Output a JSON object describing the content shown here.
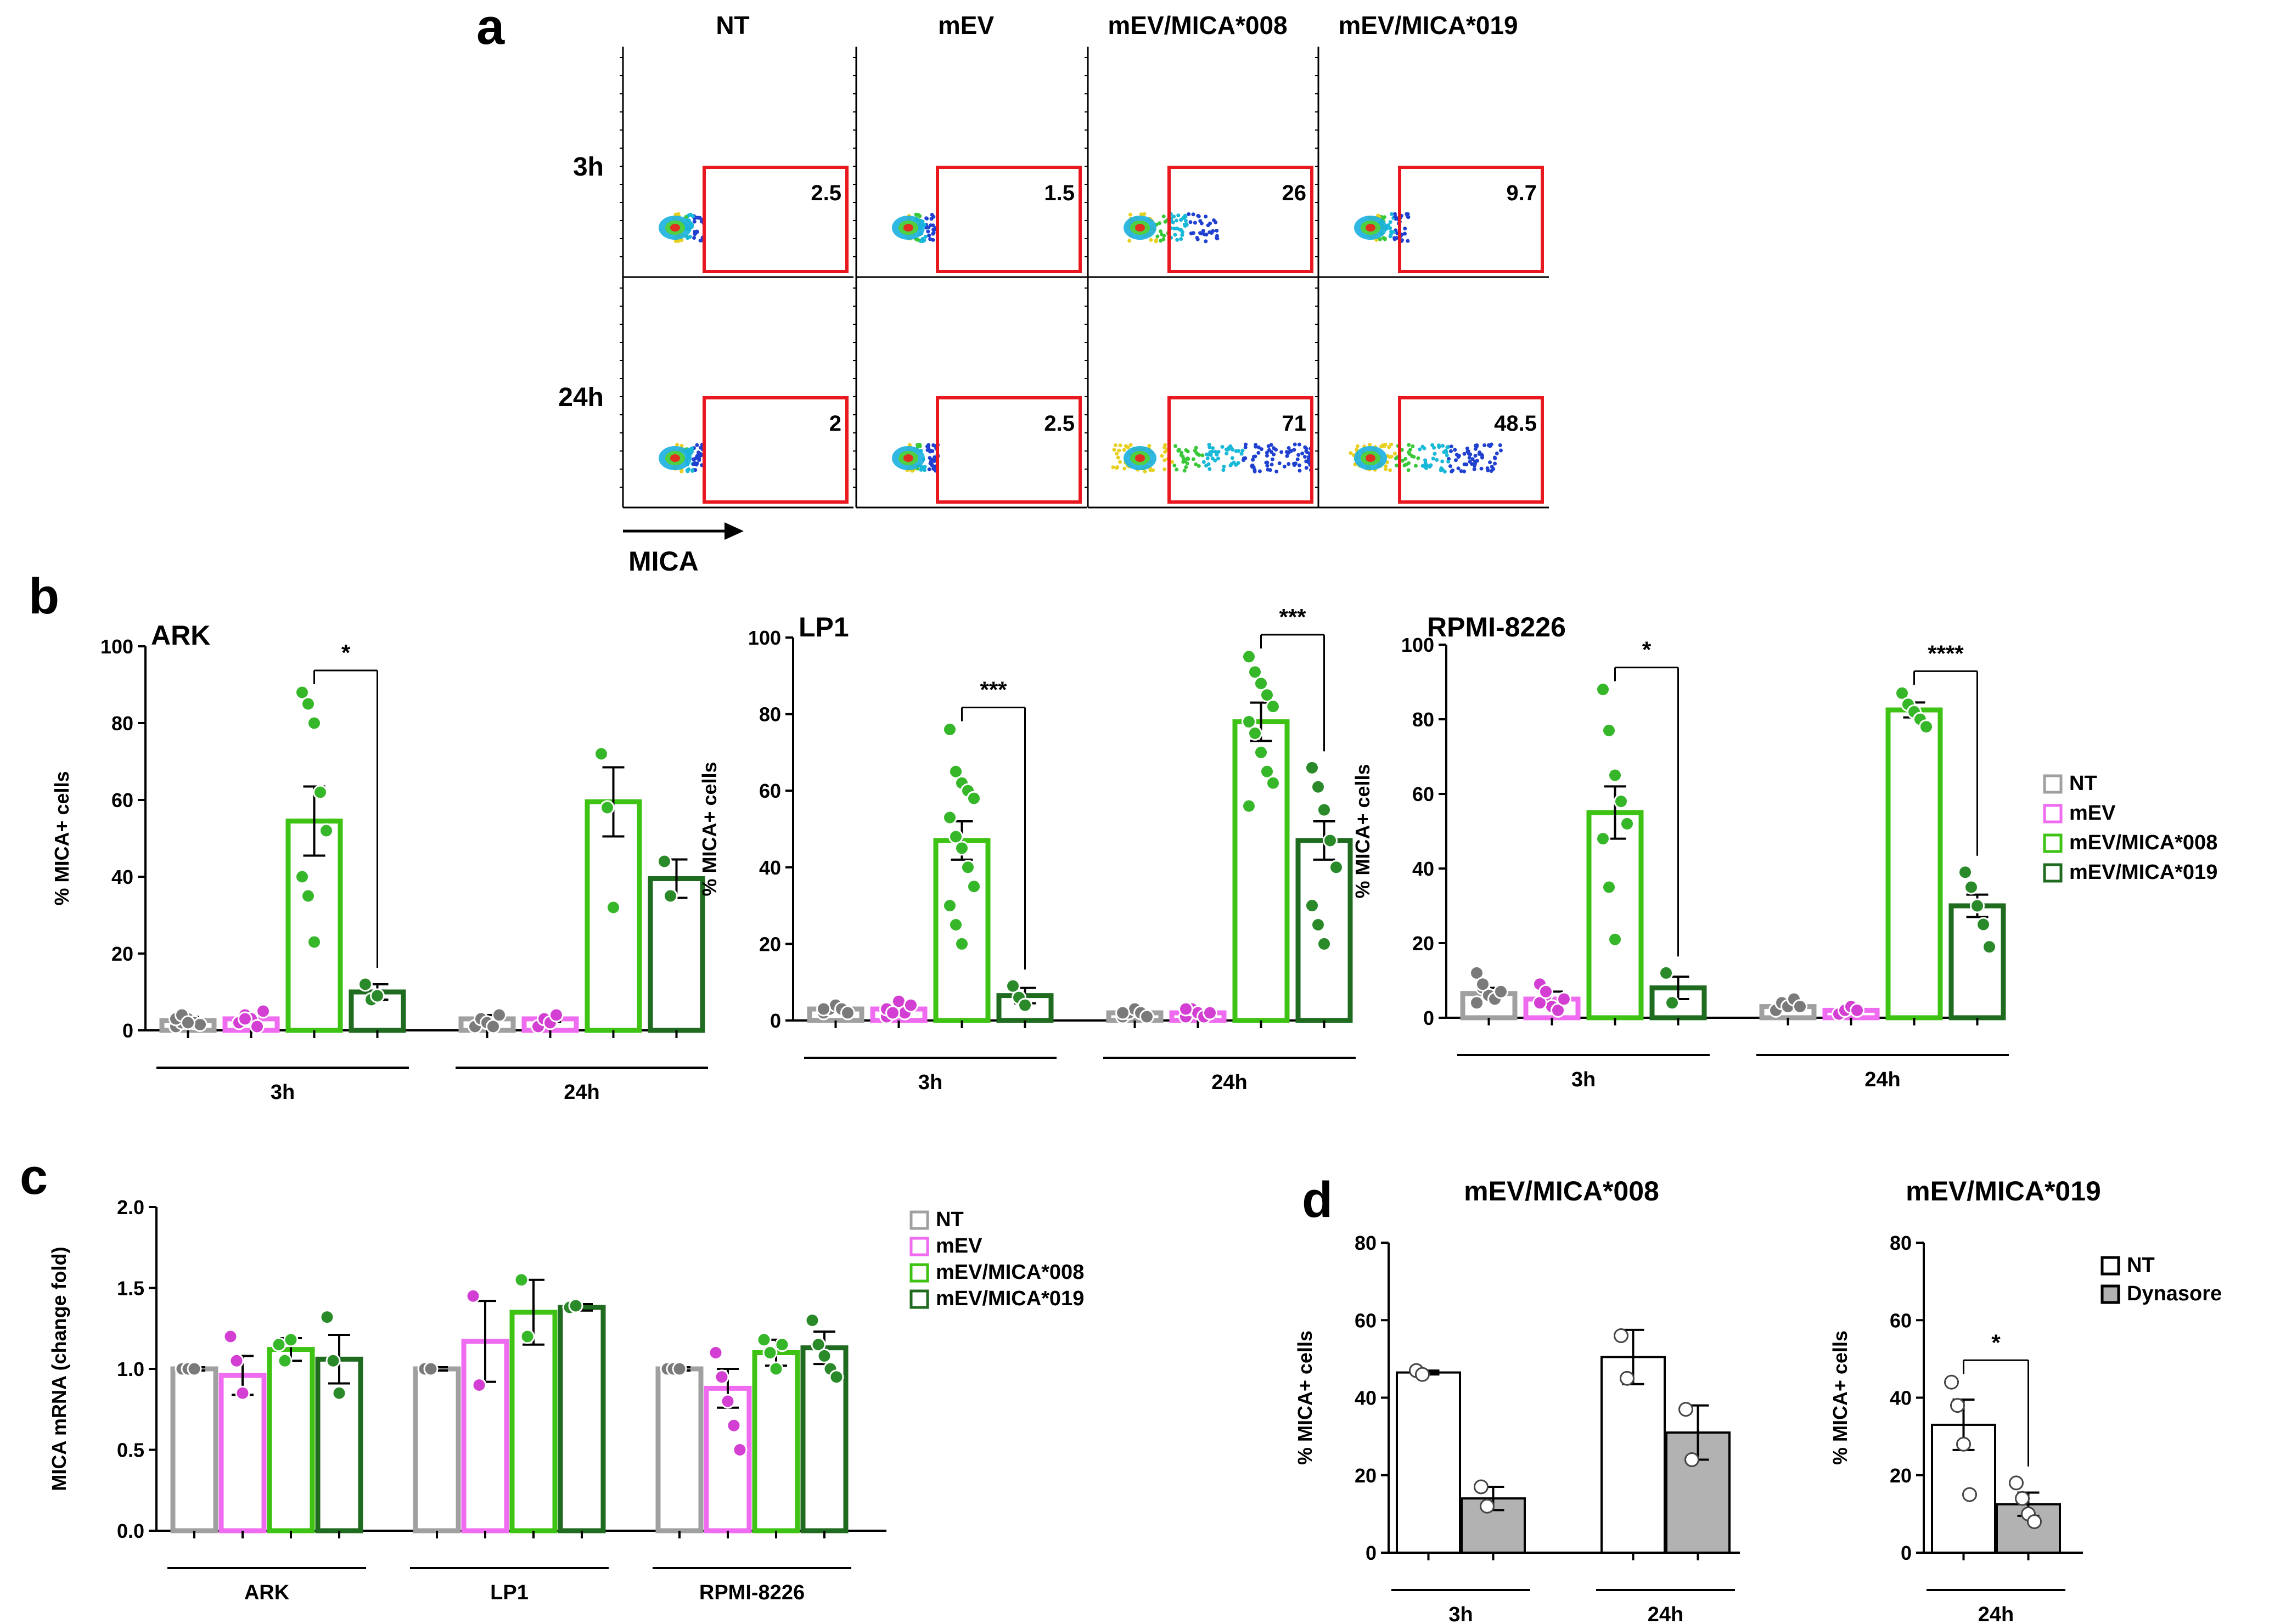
{
  "panel_letters": {
    "a": "a",
    "b": "b",
    "c": "c",
    "d": "d"
  },
  "panel_a": {
    "col_headers": [
      "NT",
      "mEV",
      "mEV/MICA*008",
      "mEV/MICA*019"
    ],
    "row_headers": [
      "3h",
      "24h"
    ],
    "gate_values": [
      [
        "2.5",
        "1.5",
        "26",
        "9.7"
      ],
      [
        "2",
        "2.5",
        "71",
        "48.5"
      ]
    ],
    "x_axis_label": "MICA",
    "gate_color": "#e8181e"
  },
  "legend_b": [
    "NT",
    "mEV",
    "mEV/MICA*008",
    "mEV/MICA*019"
  ],
  "legend_c": [
    "NT",
    "mEV",
    "mEV/MICA*008",
    "mEV/MICA*019"
  ],
  "legend_d": [
    "NT",
    "Dynasore"
  ],
  "colors": {
    "NT": "#a0a0a0",
    "mEV": "#ef6cf0",
    "mEV/MICA*008": "#3ec314",
    "mEV/MICA*019": "#1f6b1f",
    "Dynasore": "#b2b2b2",
    "dot_NT": "#7a7a7a",
    "dot_mEV": "#d23fd2",
    "dot_008": "#36b72a",
    "dot_019": "#2a8a2a"
  },
  "chart_data": [
    {
      "id": "b-ARK",
      "type": "bar",
      "title": "ARK",
      "ylabel": "% MICA+ cells",
      "ylim": [
        0,
        100
      ],
      "yticks": [
        "0",
        "20",
        "40",
        "60",
        "80",
        "100"
      ],
      "groups": [
        "3h",
        "24h"
      ],
      "series": [
        {
          "name": "NT",
          "values": [
            2.5,
            3
          ]
        },
        {
          "name": "mEV",
          "values": [
            3,
            3
          ]
        },
        {
          "name": "mEV/MICA*008",
          "values": [
            54.5,
            59.5
          ]
        },
        {
          "name": "mEV/MICA*019",
          "values": [
            10,
            39.5
          ]
        }
      ],
      "errors": [
        [
          1,
          1
        ],
        [
          1,
          0.8
        ],
        [
          9,
          9
        ],
        [
          2,
          5
        ]
      ],
      "points": [
        [
          [
            1,
            2,
            3,
            2,
            1.5,
            3,
            4,
            2
          ],
          [
            1,
            3,
            2,
            1,
            4
          ]
        ],
        [
          [
            2,
            4,
            3,
            1,
            5,
            2,
            3
          ],
          [
            1,
            3,
            2,
            4
          ]
        ],
        [
          [
            88,
            85,
            80,
            62,
            52,
            40,
            35,
            23
          ],
          [
            72,
            58,
            32
          ]
        ],
        [
          [
            12,
            8,
            9
          ],
          [
            44,
            35
          ]
        ]
      ],
      "significance": [
        {
          "group": 0,
          "label": "*"
        }
      ]
    },
    {
      "id": "b-LP1",
      "type": "bar",
      "title": "LP1",
      "ylabel": "% MICA+ cells",
      "ylim": [
        0,
        100
      ],
      "yticks": [
        "0",
        "20",
        "40",
        "60",
        "80",
        "100"
      ],
      "groups": [
        "3h",
        "24h"
      ],
      "series": [
        {
          "name": "NT",
          "values": [
            3,
            2
          ]
        },
        {
          "name": "mEV",
          "values": [
            3,
            2
          ]
        },
        {
          "name": "mEV/MICA*008",
          "values": [
            47,
            78
          ]
        },
        {
          "name": "mEV/MICA*019",
          "values": [
            6.5,
            47
          ]
        }
      ],
      "errors": [
        [
          0.6,
          0.5
        ],
        [
          0.8,
          0.5
        ],
        [
          5,
          5
        ],
        [
          2,
          5
        ]
      ],
      "points": [
        [
          [
            2,
            3,
            4,
            3,
            2,
            3
          ],
          [
            1,
            2,
            3,
            2,
            1,
            2
          ]
        ],
        [
          [
            1,
            3,
            5,
            2,
            4,
            3,
            2
          ],
          [
            1,
            3,
            2,
            1,
            2,
            3
          ]
        ],
        [
          [
            76,
            65,
            62,
            60,
            58,
            53,
            48,
            45,
            40,
            35,
            30,
            25,
            20
          ],
          [
            95,
            91,
            88,
            85,
            82,
            78,
            75,
            70,
            65,
            62,
            56
          ]
        ],
        [
          [
            9,
            6,
            4
          ],
          [
            66,
            61,
            55,
            47,
            40,
            30,
            25,
            20
          ]
        ]
      ],
      "significance": [
        {
          "group": 0,
          "label": "***"
        },
        {
          "group": 1,
          "label": "***"
        }
      ]
    },
    {
      "id": "b-RPMI",
      "type": "bar",
      "title": "RPMI-8226",
      "ylabel": "% MICA+ cells",
      "ylim": [
        0,
        100
      ],
      "yticks": [
        "0",
        "20",
        "40",
        "60",
        "80",
        "100"
      ],
      "groups": [
        "3h",
        "24h"
      ],
      "series": [
        {
          "name": "NT",
          "values": [
            6.5,
            3
          ]
        },
        {
          "name": "mEV",
          "values": [
            5,
            2
          ]
        },
        {
          "name": "mEV/MICA*008",
          "values": [
            55,
            82.5
          ]
        },
        {
          "name": "mEV/MICA*019",
          "values": [
            8,
            30
          ]
        }
      ],
      "errors": [
        [
          1.5,
          1
        ],
        [
          2,
          0.5
        ],
        [
          7,
          2
        ],
        [
          3,
          3
        ]
      ],
      "points": [
        [
          [
            12,
            8,
            6,
            5,
            7,
            4,
            9
          ],
          [
            2,
            4,
            3,
            5,
            3
          ]
        ],
        [
          [
            9,
            6,
            3,
            2,
            5,
            4,
            7
          ],
          [
            1,
            2,
            3,
            2
          ]
        ],
        [
          [
            88,
            77,
            65,
            58,
            52,
            48,
            35,
            21
          ],
          [
            87,
            84,
            82,
            80,
            78
          ]
        ],
        [
          [
            12,
            4
          ],
          [
            39,
            35,
            30,
            25,
            19
          ]
        ]
      ],
      "significance": [
        {
          "group": 0,
          "label": "*"
        },
        {
          "group": 1,
          "label": "****"
        }
      ]
    },
    {
      "id": "c",
      "type": "bar",
      "title": "",
      "ylabel": "MICA mRNA (change fold)",
      "ylim": [
        0,
        2
      ],
      "yticks": [
        "0.0",
        "0.5",
        "1.0",
        "1.5",
        "2.0"
      ],
      "groups": [
        "ARK",
        "LP1",
        "RPMI-8226"
      ],
      "series": [
        {
          "name": "NT",
          "values": [
            1.0,
            1.0,
            1.0
          ]
        },
        {
          "name": "mEV",
          "values": [
            0.96,
            1.17,
            0.88
          ]
        },
        {
          "name": "mEV/MICA*008",
          "values": [
            1.12,
            1.35,
            1.1
          ]
        },
        {
          "name": "mEV/MICA*019",
          "values": [
            1.06,
            1.38,
            1.13
          ]
        }
      ],
      "errors": [
        [
          0.01,
          0.01,
          0.01
        ],
        [
          0.12,
          0.25,
          0.12
        ],
        [
          0.07,
          0.2,
          0.08
        ],
        [
          0.15,
          0.02,
          0.1
        ]
      ],
      "points": [
        [
          [
            1,
            1,
            1
          ],
          [
            1,
            1
          ],
          [
            1,
            1,
            1
          ]
        ],
        [
          [
            1.2,
            1.05,
            0.85
          ],
          [
            1.45,
            0.9
          ],
          [
            1.1,
            0.95,
            0.8,
            0.65,
            0.5
          ]
        ],
        [
          [
            1.15,
            1.05,
            1.18
          ],
          [
            1.55,
            1.2
          ],
          [
            1.18,
            1.1,
            1.0,
            1.15
          ]
        ],
        [
          [
            1.32,
            1.05,
            0.85
          ],
          [
            1.38,
            1.39
          ],
          [
            1.3,
            1.15,
            1.08,
            1.0,
            0.95
          ]
        ]
      ],
      "significance": []
    },
    {
      "id": "d-008",
      "type": "bar",
      "title": "mEV/MICA*008",
      "ylabel": "% MICA+ cells",
      "ylim": [
        0,
        80
      ],
      "yticks": [
        "0",
        "20",
        "40",
        "60",
        "80"
      ],
      "groups": [
        "3h",
        "24h"
      ],
      "series": [
        {
          "name": "NT",
          "values": [
            46.5,
            50.5
          ]
        },
        {
          "name": "Dynasore",
          "values": [
            14,
            31
          ]
        }
      ],
      "errors": [
        [
          0.5,
          7
        ],
        [
          3,
          7
        ]
      ],
      "points": [
        [
          [
            47,
            46
          ],
          [
            56,
            45
          ]
        ],
        [
          [
            17,
            12
          ],
          [
            37,
            24
          ]
        ]
      ],
      "significance": []
    },
    {
      "id": "d-019",
      "type": "bar",
      "title": "mEV/MICA*019",
      "ylabel": "% MICA+ cells",
      "ylim": [
        0,
        80
      ],
      "yticks": [
        "0",
        "20",
        "40",
        "60",
        "80"
      ],
      "groups": [
        "24h"
      ],
      "series": [
        {
          "name": "NT",
          "values": [
            33
          ]
        },
        {
          "name": "Dynasore",
          "values": [
            12.5
          ]
        }
      ],
      "errors": [
        [
          6.5
        ],
        [
          3
        ]
      ],
      "points": [
        [
          [
            44,
            38,
            28,
            15
          ]
        ],
        [
          [
            18,
            14,
            10,
            8
          ]
        ]
      ],
      "significance": [
        {
          "group": 0,
          "label": "*"
        }
      ]
    }
  ]
}
